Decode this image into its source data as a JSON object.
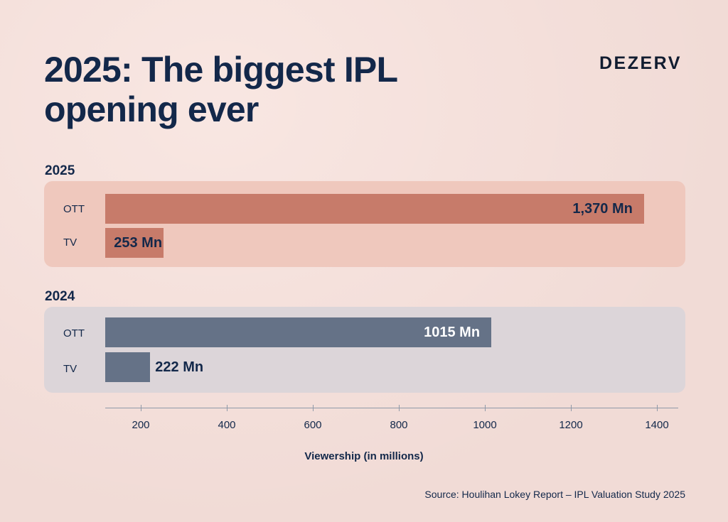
{
  "header": {
    "title_line1": "2025: The biggest IPL",
    "title_line2": "opening ever",
    "brand": "DEZERV"
  },
  "source": "Source: Houlihan Lokey Report – IPL Valuation Study 2025",
  "colors": {
    "bar_2025": "#c77b6a",
    "bar_2024": "#657287",
    "panel_2025": "#efc8bd",
    "panel_2024": "#dcd5d9",
    "text": "#13284a"
  },
  "chart_data": {
    "type": "bar",
    "orientation": "horizontal",
    "xlabel": "Viewership (in millions)",
    "xticks": [
      200,
      400,
      600,
      800,
      1000,
      1200,
      1400
    ],
    "groups": [
      {
        "name": "2025",
        "bars": [
          {
            "category": "OTT",
            "value": 1370,
            "label": "1,370 Mn"
          },
          {
            "category": "TV",
            "value": 253,
            "label": "253 Mn"
          }
        ]
      },
      {
        "name": "2024",
        "bars": [
          {
            "category": "OTT",
            "value": 1015,
            "label": "1015 Mn"
          },
          {
            "category": "TV",
            "value": 222,
            "label": "222 Mn"
          }
        ]
      }
    ],
    "grid": false,
    "legend": "none"
  }
}
